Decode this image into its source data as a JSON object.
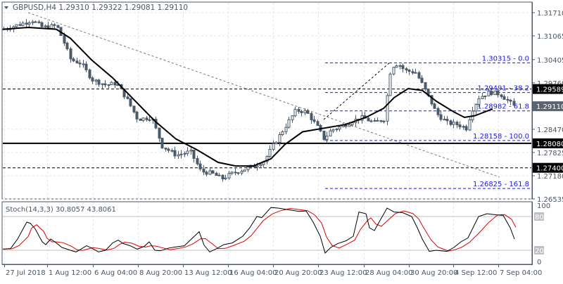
{
  "header": {
    "symbol": "GBPUSD,H4",
    "ohlc": "1.29310 1.29322 1.29081 1.29110",
    "full": "GBPUSD,H4  1.29310 1.29322 1.29081 1.29110"
  },
  "stoch": {
    "label": "Stoch(14,3,3) 30.8057 43.8061",
    "levels": [
      "100",
      "80",
      "20",
      "0"
    ]
  },
  "colors": {
    "candle": "#4a5a6a",
    "ma": "#000000",
    "fib": "#1a1adb",
    "stoch_main": "#000000",
    "stoch_signal": "#e00000",
    "grid": "#e2e6ea",
    "axis": "#4a5560"
  },
  "chart_data": [
    {
      "type": "candlestick",
      "title": "GBPUSD,H4",
      "ohlc_last": {
        "open": 1.2931,
        "high": 1.29322,
        "low": 1.29081,
        "close": 1.2911
      },
      "y_ticks": [
        "1.31710",
        "1.31065",
        "1.30405",
        "1.29760",
        "1.28470",
        "1.27825",
        "1.27180",
        "1.26535"
      ],
      "x_ticks": [
        "27 Jul 2018",
        "1 Aug 12:00",
        "6 Aug 04:00",
        "8 Aug 20:00",
        "13 Aug 12:00",
        "16 Aug 04:00",
        "20 Aug 20:00",
        "23 Aug 12:00",
        "28 Aug 04:00",
        "30 Aug 20:00",
        "4 Sep 12:00",
        "7 Sep 04:00"
      ],
      "price_labels": [
        {
          "value": "1.29589",
          "style": "black"
        },
        {
          "value": "1.29110",
          "style": "gray",
          "note": "current price"
        },
        {
          "value": "1.28080",
          "style": "black"
        },
        {
          "value": "1.27400",
          "style": "black"
        }
      ],
      "horizontal_lines": [
        {
          "price": 1.29589,
          "style": "dashed",
          "color": "#000000"
        },
        {
          "price": 1.2808,
          "style": "solid-thick",
          "color": "#000000"
        },
        {
          "price": 1.274,
          "style": "dashed",
          "color": "#000000"
        }
      ],
      "fibonacci": [
        {
          "label": "1.30315 - 0.0",
          "price": 1.30315
        },
        {
          "label": "1.29491 - 38.2",
          "price": 1.29491
        },
        {
          "label": "1.28982 - 61.8",
          "price": 1.28982
        },
        {
          "label": "1.28158 - 100.0",
          "price": 1.28158
        },
        {
          "label": "1.26825 - 161.8",
          "price": 1.26825
        }
      ],
      "trendline": {
        "style": "dotted gray",
        "from": {
          "x": "27 Jul 2018",
          "price": 1.3175
        },
        "to": {
          "x": "7 Sep 04:00",
          "price": 1.2705
        }
      },
      "moving_average": {
        "color": "#000000",
        "shape": "declines from ~1.3125 to ~1.2740 (16 Aug), rises to ~1.2960 (30 Aug), dips to ~1.2880 (4 Sep), ends ~1.2905"
      },
      "ylim": [
        1.264,
        1.3195
      ]
    },
    {
      "type": "line",
      "title": "Stoch(14,3,3) 30.8057 43.8061",
      "ylim": [
        0,
        100
      ],
      "levels": [
        20,
        80
      ],
      "series": [
        {
          "name": "%K",
          "color": "#000000",
          "last": 30.8057
        },
        {
          "name": "%D",
          "color": "#e00000",
          "last": 43.8061
        }
      ]
    }
  ]
}
